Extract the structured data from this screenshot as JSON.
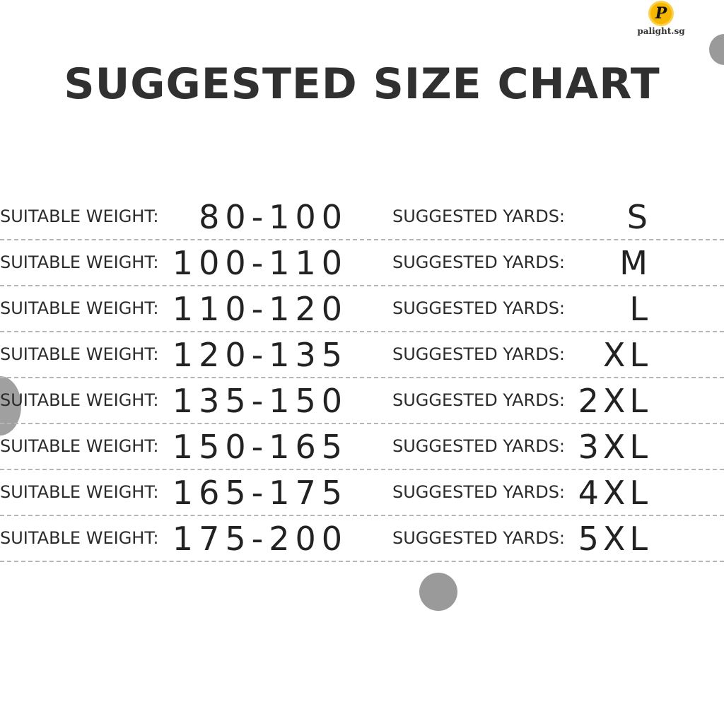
{
  "title": "SUGGESTED SIZE CHART",
  "logo": {
    "text": "palight.sg",
    "mark": "P"
  },
  "colors": {
    "text": "#2b2b2b",
    "logo_sun": "#f6b700",
    "dots": "#9a9a9a",
    "divider": "#b5b5b5"
  },
  "weight_label": "SUITABLE WEIGHT:",
  "size_label": "SUGGESTED YARDS:",
  "rows": [
    {
      "weight": "80-100",
      "size": "S"
    },
    {
      "weight": "100-110",
      "size": "M"
    },
    {
      "weight": "110-120",
      "size": "L"
    },
    {
      "weight": "120-135",
      "size": "XL"
    },
    {
      "weight": "135-150",
      "size": "2XL"
    },
    {
      "weight": "150-165",
      "size": "3XL"
    },
    {
      "weight": "165-175",
      "size": "4XL"
    },
    {
      "weight": "175-200",
      "size": "5XL"
    }
  ]
}
